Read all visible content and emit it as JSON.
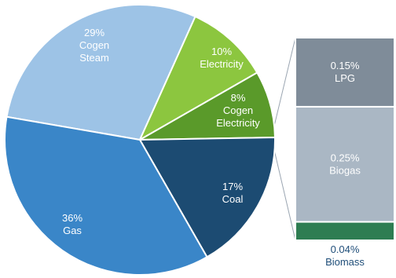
{
  "chart_data": [
    {
      "type": "pie",
      "unit": "%",
      "slices": [
        {
          "value": 29,
          "label_lines": [
            "29%",
            "Cogen",
            "Steam"
          ],
          "color": "#9dc3e6"
        },
        {
          "value": 10,
          "label_lines": [
            "10%",
            "Electricity"
          ],
          "color": "#8cc63f"
        },
        {
          "value": 8,
          "label_lines": [
            "8%",
            "Cogen",
            "Electricity"
          ],
          "color": "#5a9a2a"
        },
        {
          "value": 17,
          "label_lines": [
            "17%",
            "Coal"
          ],
          "color": "#1c4b72"
        },
        {
          "value": 36,
          "label_lines": [
            "36%",
            "Gas"
          ],
          "color": "#3a86c8"
        }
      ]
    },
    {
      "type": "bar",
      "stacked": true,
      "unit": "%",
      "segments": [
        {
          "value": 0.15,
          "label_lines": [
            "0.15%",
            "LPG"
          ],
          "color": "#7f8c99"
        },
        {
          "value": 0.25,
          "label_lines": [
            "0.25%",
            "Biogas"
          ],
          "color": "#aab7c4"
        },
        {
          "value": 0.04,
          "label_lines": [
            "0.04%",
            "Biomass"
          ],
          "color": "#2e7d52"
        }
      ]
    }
  ]
}
